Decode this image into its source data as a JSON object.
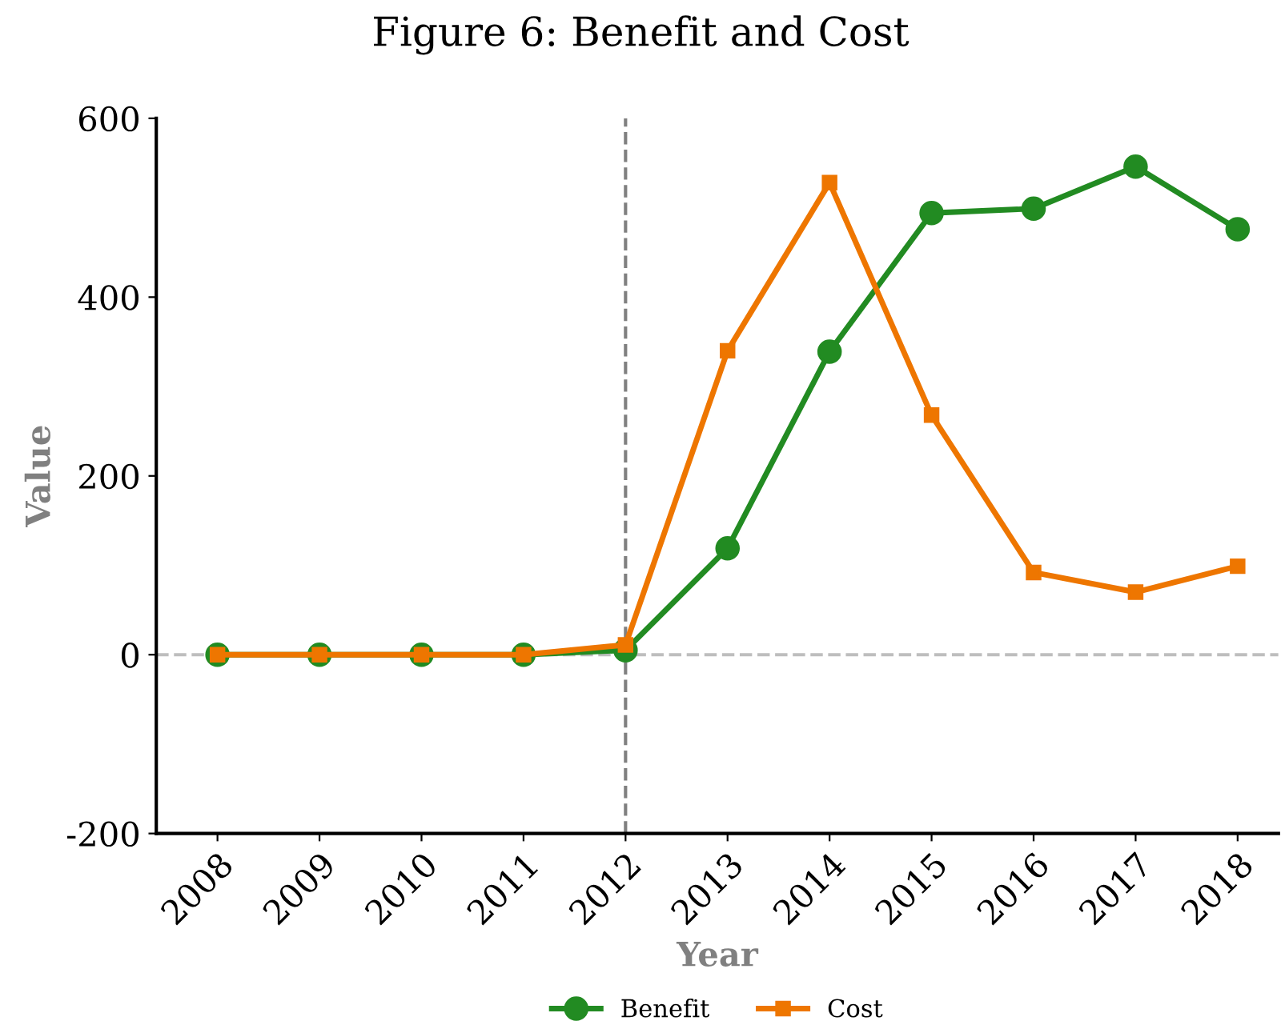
{
  "chart_data": {
    "type": "line",
    "title": "Figure 6: Benefit and Cost",
    "xlabel": "Year",
    "ylabel": "Value",
    "categories": [
      "2008",
      "2009",
      "2010",
      "2011",
      "2012",
      "2013",
      "2014",
      "2015",
      "2016",
      "2017",
      "2018"
    ],
    "series": [
      {
        "name": "Benefit",
        "color": "#228b22",
        "marker": "circle",
        "values": [
          0,
          0,
          0,
          0,
          5,
          119,
          339,
          494,
          499,
          546,
          476
        ]
      },
      {
        "name": "Cost",
        "color": "#ee7600",
        "marker": "square",
        "values": [
          0,
          0,
          0,
          0,
          11,
          340,
          528,
          268,
          92,
          70,
          99
        ]
      }
    ],
    "ylim": [
      -200,
      600
    ],
    "yticks": [
      -200,
      0,
      200,
      400,
      600
    ],
    "ref_lines": [
      {
        "axis": "x",
        "value": "2012",
        "color": "#808080",
        "line_style": "dashed"
      },
      {
        "axis": "y",
        "value": 0,
        "color": "#bebebe",
        "line_style": "dashed"
      }
    ],
    "grid": false,
    "legend": "bottom",
    "line_style": "solid"
  }
}
